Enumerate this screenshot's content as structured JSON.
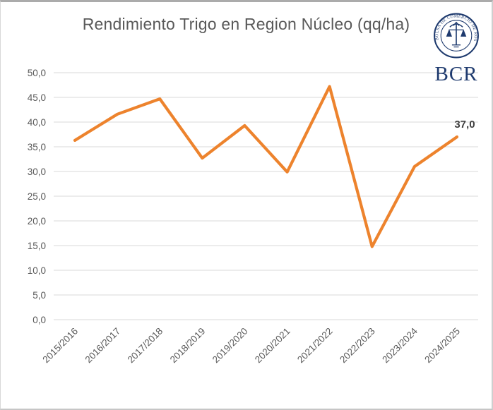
{
  "logo": {
    "seal_text": "BOLSA DE COMERCIO DE ROSARIO",
    "text": "BCR"
  },
  "chart_data": {
    "type": "line",
    "title": "Rendimiento Trigo en Region Núcleo (qq/ha)",
    "categories": [
      "2015/2016",
      "2016/2017",
      "2017/2018",
      "2018/2019",
      "2019/2020",
      "2020/2021",
      "2021/2022",
      "2022/2023",
      "2023/2024",
      "2024/2025"
    ],
    "values": [
      36.3,
      41.6,
      44.7,
      32.7,
      39.3,
      29.9,
      47.2,
      14.8,
      31.0,
      37.0
    ],
    "xlabel": "",
    "ylabel": "",
    "ylim": [
      0,
      50
    ],
    "y_tick_step": 5,
    "y_ticks": [
      "0,0",
      "5,0",
      "10,0",
      "15,0",
      "20,0",
      "25,0",
      "30,0",
      "35,0",
      "40,0",
      "45,0",
      "50,0"
    ],
    "grid": "horizontal",
    "legend": "none",
    "last_point_label": "37,0",
    "colors": {
      "line": "#ed832d",
      "grid": "#d9d9d9",
      "text": "#595959",
      "data_label": "#3f3f3f",
      "logo_navy": "#1e3a6e"
    }
  }
}
